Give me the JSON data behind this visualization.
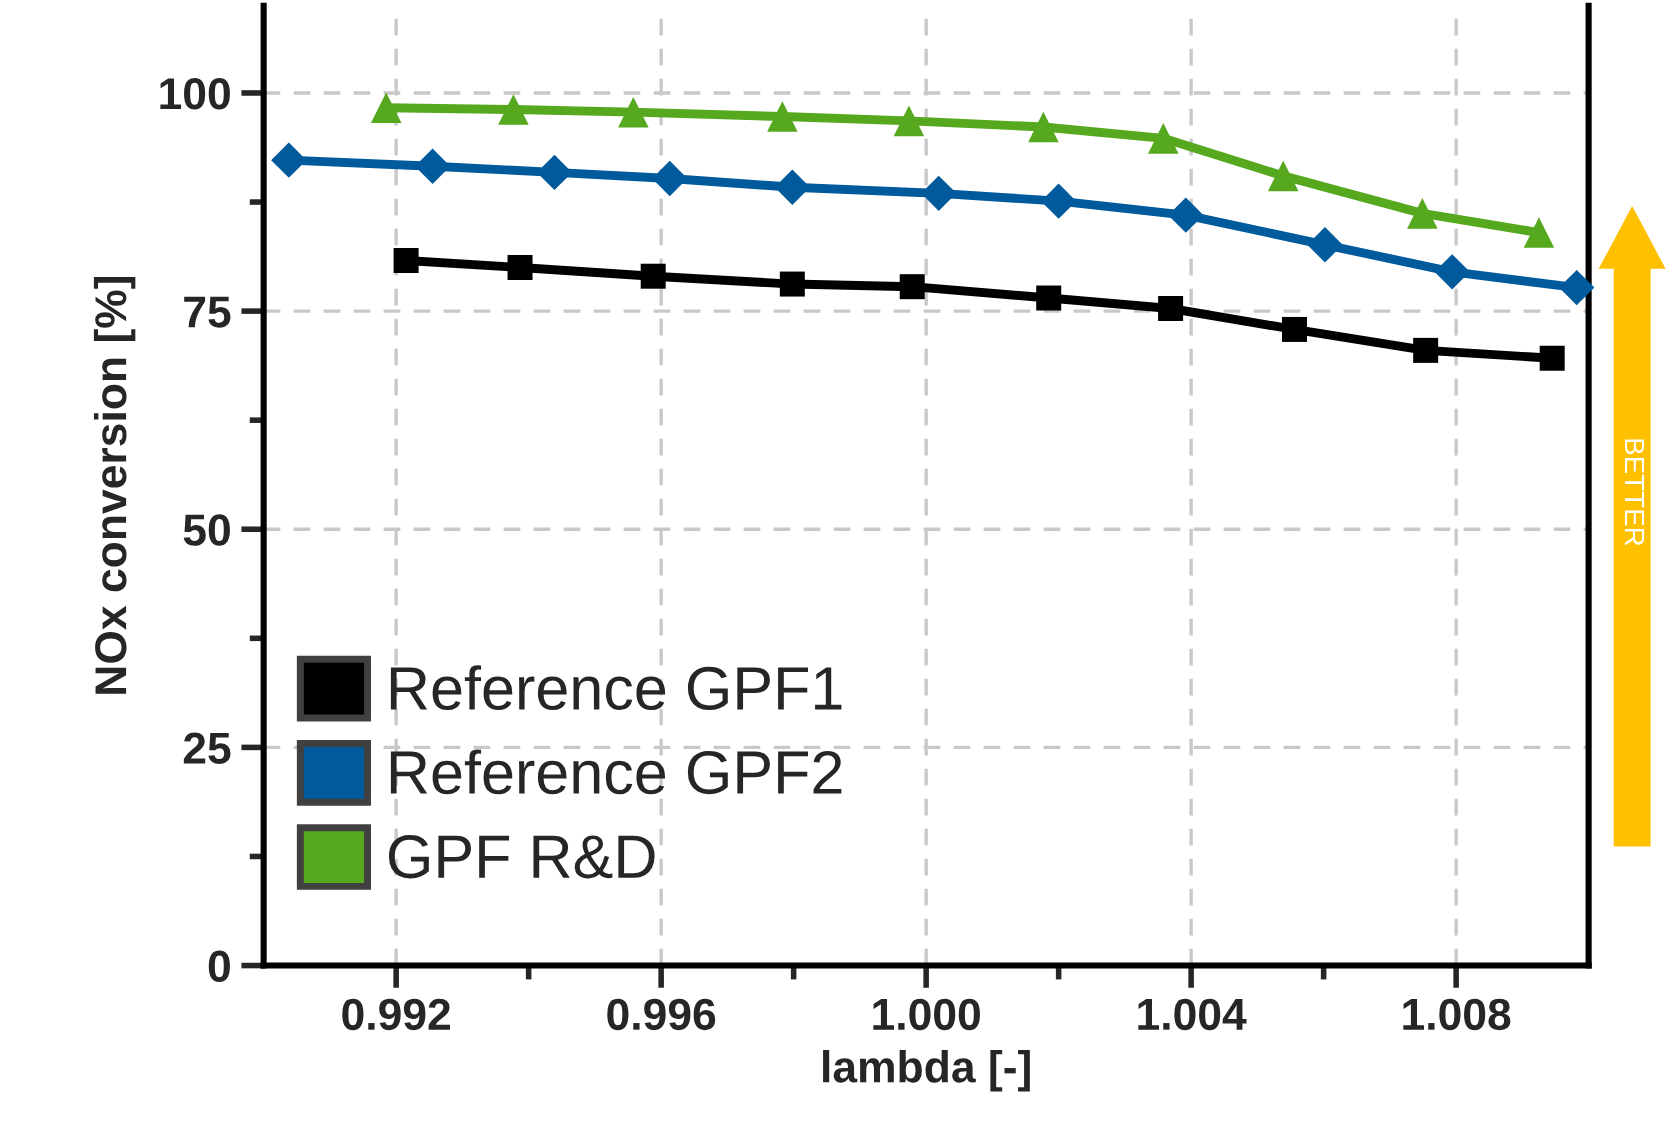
{
  "chart_data": {
    "type": "line",
    "xlabel": "lambda [-]",
    "ylabel": "NOx conversion [%]",
    "xlim": [
      0.99,
      1.01
    ],
    "xticks": [
      0.992,
      0.996,
      {
        "value": 1.0,
        "label": "1.000"
      },
      1.004,
      1.008,
      {
        "value": 0.994,
        "label": null
      },
      {
        "value": 0.998,
        "label": null
      },
      {
        "value": 1.002,
        "label": null
      },
      {
        "value": 1.006,
        "label": null
      }
    ],
    "ylim": [
      0,
      110
    ],
    "yticks": [
      0,
      25,
      50,
      75,
      100,
      {
        "value": 12.5,
        "label": null
      },
      {
        "value": 37.5,
        "label": null
      },
      {
        "value": 62.5,
        "label": null
      },
      {
        "value": 87.5,
        "label": null
      }
    ],
    "grid": true,
    "legend": "bottom left",
    "line_style": "solid",
    "annotations": [
      "BETTER"
    ],
    "series": [
      {
        "name": "Reference GPF1",
        "color": "#000000",
        "marker": "square",
        "x": [
          0.99215,
          0.99387,
          0.99588,
          0.99798,
          0.99979,
          1.00185,
          1.00369,
          1.00556,
          1.00754,
          1.00945
        ],
        "values": [
          80.8,
          80.0,
          79.0,
          78.1,
          77.8,
          76.5,
          75.3,
          72.9,
          70.5,
          69.6
        ]
      },
      {
        "name": "Reference GPF2",
        "color": "#005a9c",
        "marker": "diamond",
        "x": [
          0.99038,
          0.99255,
          0.99439,
          0.99613,
          0.99798,
          1.00019,
          1.002,
          1.00392,
          1.00602,
          1.00794,
          1.00982
        ],
        "values": [
          92.3,
          91.6,
          90.9,
          90.2,
          89.2,
          88.5,
          87.6,
          86.0,
          82.6,
          79.5,
          77.7
        ]
      },
      {
        "name": "GPF R&D",
        "color": "#56a81e",
        "marker": "triangle",
        "x": [
          0.99185,
          0.99377,
          0.99558,
          0.99783,
          0.99974,
          1.00177,
          1.00358,
          1.00539,
          1.00749,
          1.00925
        ],
        "values": [
          98.3,
          98.1,
          97.8,
          97.3,
          96.8,
          96.1,
          94.8,
          90.5,
          86.2,
          84.0
        ]
      }
    ]
  }
}
